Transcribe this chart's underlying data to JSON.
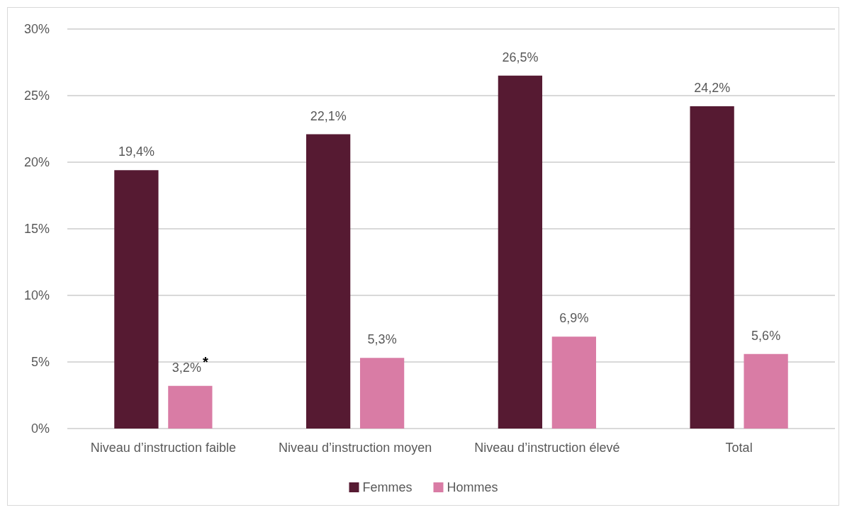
{
  "chart_data": {
    "type": "bar",
    "categories": [
      "Niveau d’instruction faible",
      "Niveau d’instruction moyen",
      "Niveau d’instruction élevé",
      "Total"
    ],
    "series": [
      {
        "name": "Femmes",
        "color": "#561a32",
        "values": [
          19.4,
          22.1,
          26.5,
          24.2
        ],
        "value_labels": [
          "19,4%",
          "22,1%",
          "26,5%",
          "24,2%"
        ]
      },
      {
        "name": "Hommes",
        "color": "#d97ca5",
        "values": [
          3.2,
          5.3,
          6.9,
          5.6
        ],
        "value_labels": [
          "3,2%$^{*}$",
          "5,3%",
          "6,9%",
          "5,6%"
        ]
      }
    ],
    "ylim": [
      0,
      30
    ],
    "yticks": [
      {
        "value": 0,
        "label": "0%"
      },
      {
        "value": 5,
        "label": "5%"
      },
      {
        "value": 10,
        "label": "10%"
      },
      {
        "value": 15,
        "label": "15%"
      },
      {
        "value": 20,
        "label": "20%"
      },
      {
        "value": 25,
        "label": "25%"
      },
      {
        "value": 30,
        "label": "30%"
      }
    ],
    "grid": "y",
    "legend": "bottom"
  }
}
